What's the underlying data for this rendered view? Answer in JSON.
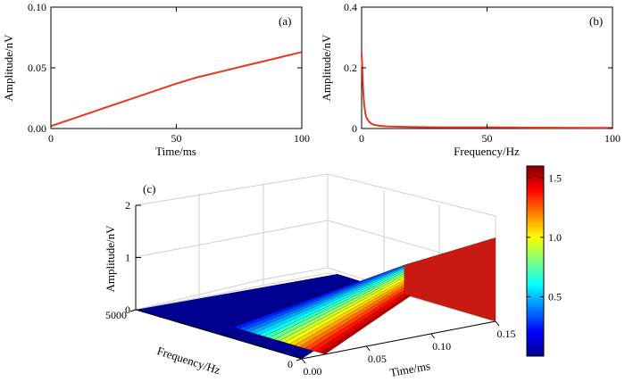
{
  "chart_data": [
    {
      "type": "line",
      "panel": "(a)",
      "xlabel": "Time/ms",
      "ylabel": "Amplitude/nV",
      "xlim": [
        0,
        100
      ],
      "ylim": [
        0,
        0.1
      ],
      "xticks": [
        0,
        50,
        100
      ],
      "xtick_labels": [
        "0",
        "50",
        "100"
      ],
      "yticks": [
        0,
        0.05,
        0.1
      ],
      "ytick_labels": [
        "0.00",
        "0.05",
        "0.10"
      ],
      "color": "#e8371c",
      "x": [
        0,
        10,
        20,
        30,
        40,
        50,
        58,
        70,
        80,
        90,
        100
      ],
      "y": [
        0.002,
        0.009,
        0.016,
        0.023,
        0.03,
        0.037,
        0.042,
        0.048,
        0.053,
        0.058,
        0.063
      ]
    },
    {
      "type": "line",
      "panel": "(b)",
      "xlabel": "Frequency/Hz",
      "ylabel": "Amplitude/nV",
      "xlim": [
        0,
        100
      ],
      "ylim": [
        0,
        0.4
      ],
      "xticks": [
        0,
        50,
        100
      ],
      "xtick_labels": [
        "0",
        "50",
        "100"
      ],
      "yticks": [
        0,
        0.2,
        0.4
      ],
      "ytick_labels": [
        "0",
        "0.2",
        "0.4"
      ],
      "color": "#e8371c",
      "x": [
        0,
        0.3,
        0.6,
        1,
        1.5,
        2,
        3,
        4,
        5,
        7,
        10,
        15,
        20,
        30,
        50,
        70,
        100
      ],
      "y": [
        0.25,
        0.2,
        0.13,
        0.08,
        0.05,
        0.035,
        0.022,
        0.016,
        0.012,
        0.009,
        0.007,
        0.006,
        0.005,
        0.004,
        0.004,
        0.003,
        0.002
      ]
    },
    {
      "type": "surface",
      "panel": "(c)",
      "xlabel": "Time/ms",
      "ylabel": "Frequency/Hz",
      "zlabel": "Amplitude/nV",
      "xticks": [
        0.0,
        0.05,
        0.1,
        0.15
      ],
      "xtick_labels": [
        "0.00",
        "0.05",
        "0.10",
        "0.15"
      ],
      "yticks": [
        0,
        5000
      ],
      "ytick_labels": [
        "0",
        "5000"
      ],
      "zticks": [
        0,
        1,
        2
      ],
      "ztick_labels": [
        "0",
        "1",
        "2"
      ],
      "time_range": [
        0,
        0.15
      ],
      "frequency_range": [
        0,
        5000
      ],
      "z_range": [
        0,
        2
      ],
      "max_amplitude": 1.6,
      "colormap": "jet",
      "colorbar_ticks": [
        0.5,
        1.0,
        1.5
      ],
      "colorbar_tick_labels": [
        "0.5",
        "1.0",
        "1.5"
      ],
      "colorbar_range": [
        0,
        1.6
      ]
    }
  ]
}
